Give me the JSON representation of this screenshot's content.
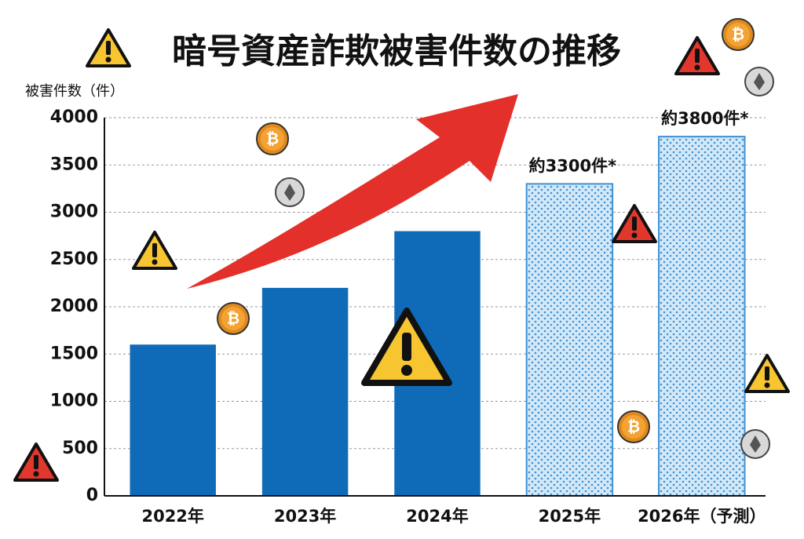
{
  "chart_data": {
    "type": "bar",
    "title": "暗号資産詐欺被害件数の推移",
    "y_label": "被害件数（件）",
    "categories": [
      "2022年",
      "2023年",
      "2024年",
      "2025年",
      "2026年（予測）"
    ],
    "values": [
      1600,
      2200,
      2800,
      3300,
      3800
    ],
    "value_labels": [
      null,
      null,
      null,
      "約3300件*",
      "約3800件*"
    ],
    "bar_styles": [
      "solid",
      "solid",
      "solid",
      "dotted",
      "dotted"
    ],
    "color": "#0f6bb8",
    "ylim": [
      0,
      4000
    ],
    "yticks": [
      0,
      500,
      1000,
      1500,
      2000,
      2500,
      3000,
      3500,
      4000
    ],
    "grid": true
  }
}
